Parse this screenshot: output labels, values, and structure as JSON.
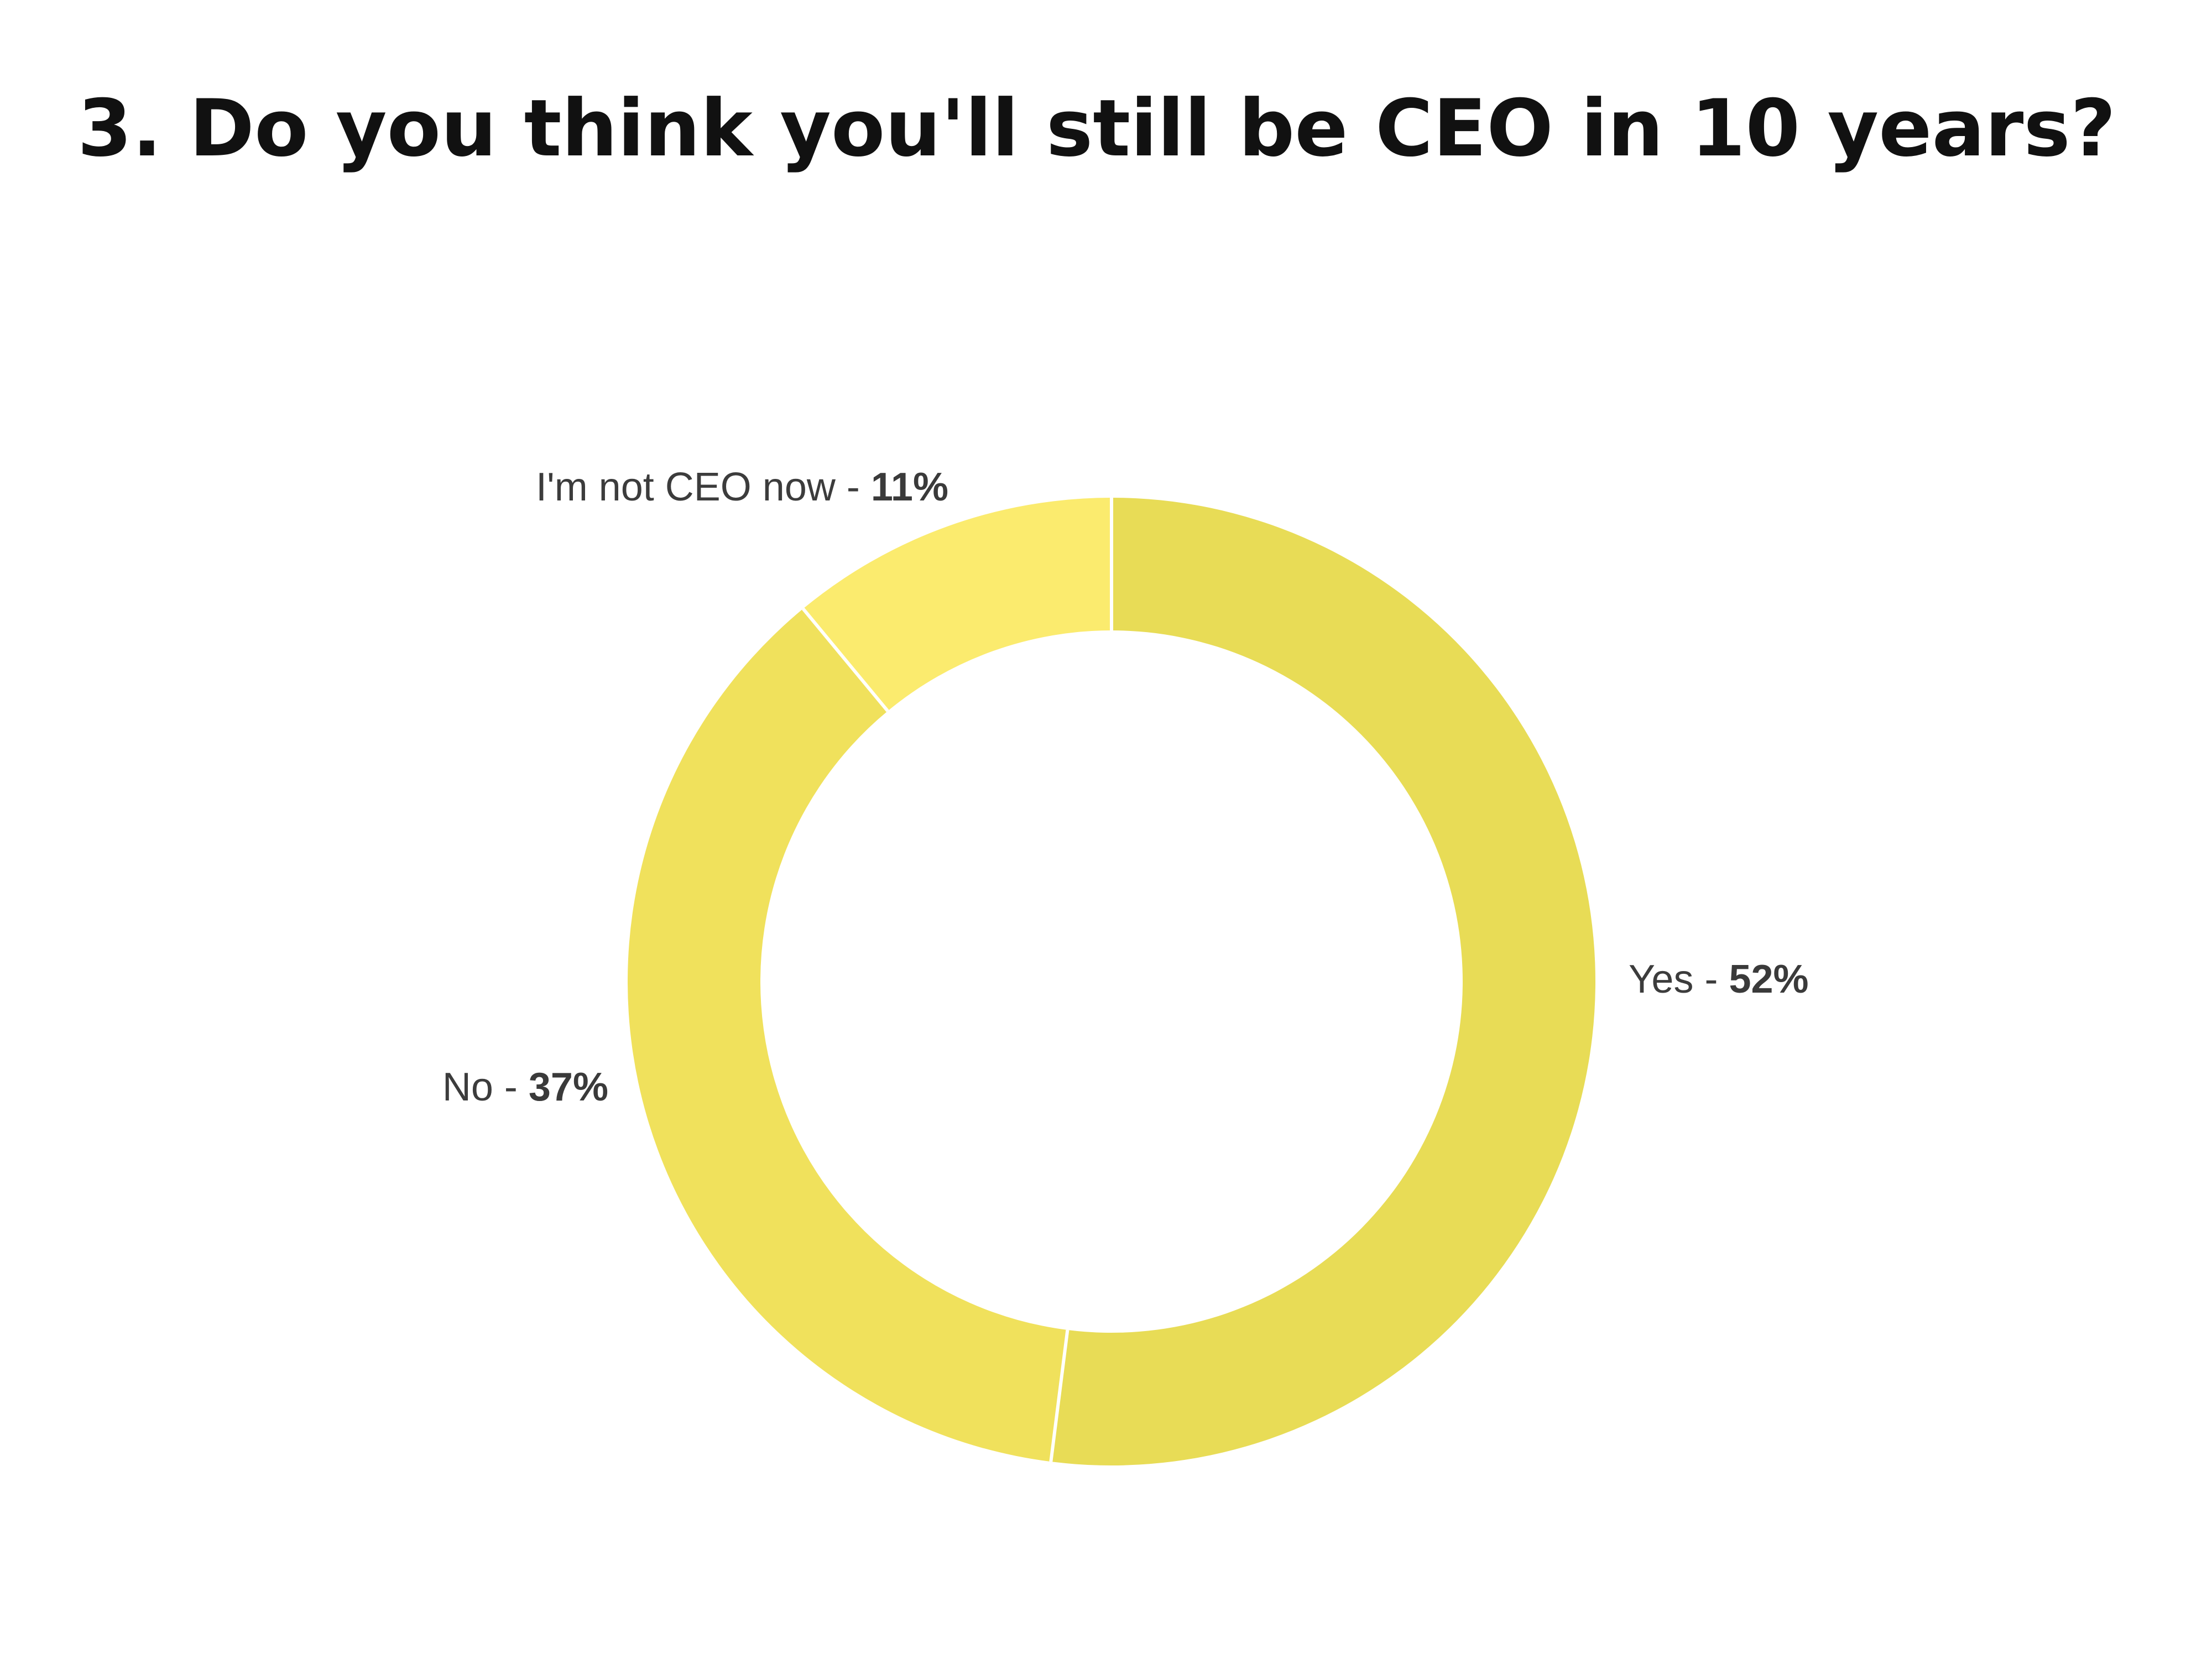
{
  "title": "3. Do you think you'll still be CEO in 10 years?",
  "chart_data": {
    "type": "pie",
    "donut": true,
    "title": "3. Do you think you'll still be CEO in 10 years?",
    "slices": [
      {
        "name": "Yes",
        "value": 52,
        "label": "52%",
        "color": "#e8dc56"
      },
      {
        "name": "No",
        "value": 37,
        "label": "37%",
        "color": "#f0e15c"
      },
      {
        "name": "I'm not CEO now",
        "value": 11,
        "label": "11%",
        "color": "#fbeb6e"
      }
    ],
    "separator": " - ",
    "legend": "none",
    "grid": false
  }
}
